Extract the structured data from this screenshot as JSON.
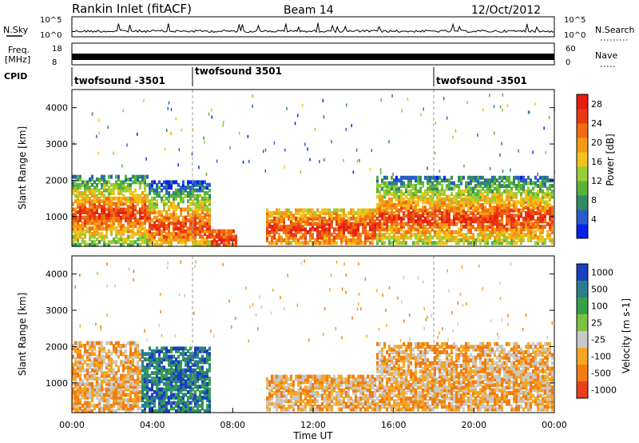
{
  "header": {
    "station": "Rankin Inlet (fitACF)",
    "beam": "Beam 14",
    "date": "12/Oct/2012"
  },
  "noise_panel": {
    "left_label": "N.Sky",
    "right_label": "N.Search",
    "left_ticks": [
      "10^5",
      "10^0"
    ],
    "right_ticks": [
      "10^5",
      "10^0"
    ]
  },
  "freq_panel": {
    "left_label_1": "Freq.",
    "left_label_2": "[MHz]",
    "right_label": "Nave",
    "left_ticks": [
      "18",
      "8"
    ],
    "right_ticks": [
      "60",
      "0"
    ]
  },
  "cpid": {
    "label": "CPID",
    "segments": [
      {
        "name": "twofsound -3501",
        "start_hour": 0
      },
      {
        "name": "twofsound 3501",
        "start_hour": 6
      },
      {
        "name": "twofsound -3501",
        "start_hour": 18
      }
    ]
  },
  "chart_data": [
    {
      "type": "heatmap",
      "name": "power",
      "ylabel": "Slant Range [km]",
      "ylim": [
        180,
        4500
      ],
      "yticks": [
        1000,
        2000,
        3000,
        4000
      ],
      "xlim_hours": [
        0,
        24
      ],
      "colorbar": {
        "label": "Power [dB]",
        "ticks": [
          4,
          8,
          12,
          16,
          20,
          24,
          28
        ],
        "range": [
          0,
          30
        ],
        "colors": [
          "#0022ee",
          "#2a5cc8",
          "#2e8b62",
          "#58b33c",
          "#9acd32",
          "#f2c21a",
          "#f59a14",
          "#f26b12",
          "#e83a10",
          "#e81c10"
        ]
      },
      "echo_regions": [
        {
          "start": 0.0,
          "end": 3.8,
          "range_lo": 200,
          "range_hi": 2100,
          "core": 1050
        },
        {
          "start": 3.8,
          "end": 6.9,
          "range_lo": 200,
          "range_hi": 2000,
          "core": 700
        },
        {
          "start": 6.9,
          "end": 8.2,
          "range_lo": 200,
          "range_hi": 600,
          "core": 350
        },
        {
          "start": 9.7,
          "end": 15.2,
          "range_lo": 250,
          "range_hi": 1200,
          "core": 650
        },
        {
          "start": 15.2,
          "end": 24.0,
          "range_lo": 250,
          "range_hi": 2100,
          "core": 950
        }
      ]
    },
    {
      "type": "heatmap",
      "name": "velocity",
      "ylabel": "Slant Range [km]",
      "ylim": [
        180,
        4500
      ],
      "yticks": [
        1000,
        2000,
        3000,
        4000
      ],
      "xlim_hours": [
        0,
        24
      ],
      "xlabel": "Time UT",
      "xticks": [
        "00:00",
        "04:00",
        "08:00",
        "12:00",
        "16:00",
        "20:00",
        "00:00"
      ],
      "colorbar": {
        "label": "Velocity [m s-1]",
        "tick_labels": [
          "1000",
          "500",
          "100",
          "25",
          "-25",
          "-100",
          "-500",
          "-1000"
        ],
        "colors": [
          "#1a3fbf",
          "#2e7d8a",
          "#35a04a",
          "#7cc242",
          "#c8c8c8",
          "#f5a623",
          "#f07d12",
          "#e8401a"
        ]
      },
      "echo_regions": [
        {
          "start": 0.0,
          "end": 3.5,
          "range_lo": 200,
          "range_hi": 2100,
          "sign": "away"
        },
        {
          "start": 3.5,
          "end": 6.9,
          "range_lo": 200,
          "range_hi": 2000,
          "sign": "toward"
        },
        {
          "start": 9.7,
          "end": 15.2,
          "range_lo": 250,
          "range_hi": 1200,
          "sign": "away"
        },
        {
          "start": 15.2,
          "end": 24.0,
          "range_lo": 250,
          "range_hi": 2100,
          "sign": "away"
        }
      ]
    }
  ]
}
